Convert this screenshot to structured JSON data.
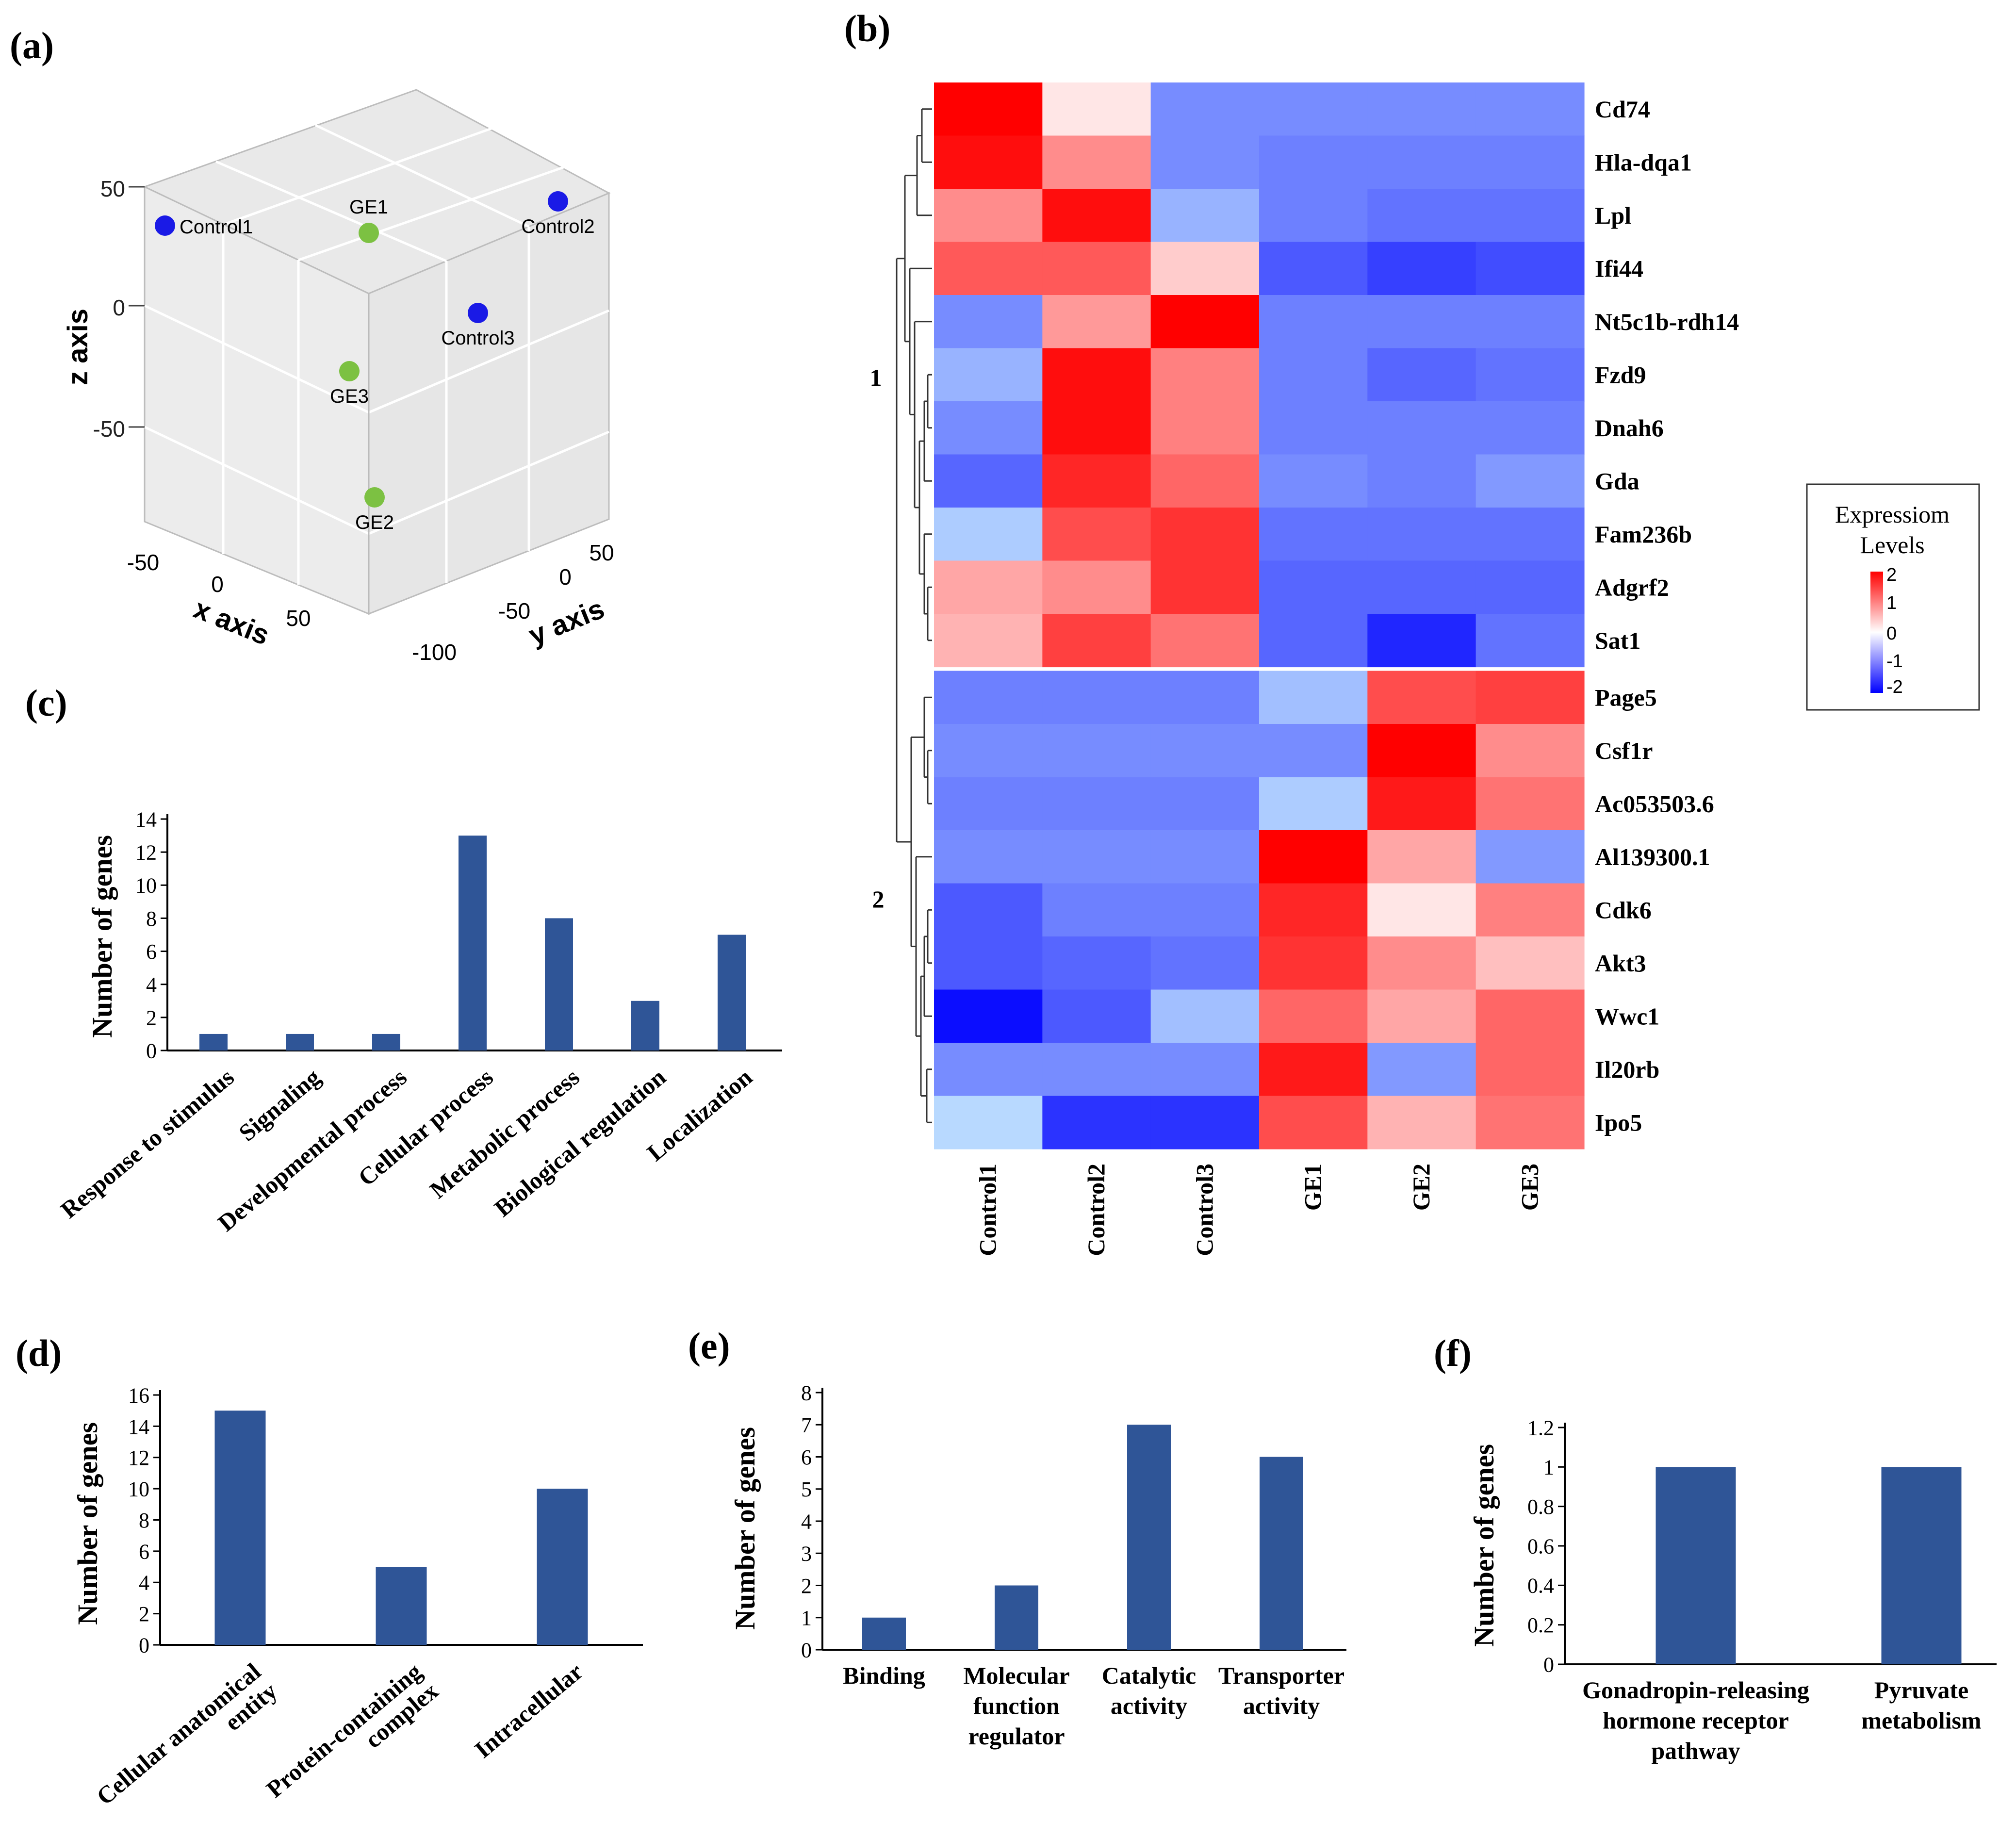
{
  "panels": {
    "a": "(a)",
    "b": "(b)",
    "c": "(c)",
    "d": "(d)",
    "e": "(e)",
    "f": "(f)"
  },
  "chart_data": [
    {
      "id": "a",
      "type": "scatter",
      "title": "",
      "xlabel": "x axis",
      "ylabel": "y axis",
      "zlabel": "z axis",
      "z_ticks": [
        "50",
        "0",
        "-50"
      ],
      "x_ticks": [
        "-50",
        "0",
        "50"
      ],
      "y_ticks": [
        "50",
        "0",
        "-50",
        "-100"
      ],
      "points": [
        {
          "label": "Control1",
          "group": "Control",
          "color": "#1a1ae6"
        },
        {
          "label": "Control2",
          "group": "Control",
          "color": "#1a1ae6"
        },
        {
          "label": "Control3",
          "group": "Control",
          "color": "#1a1ae6"
        },
        {
          "label": "GE1",
          "group": "GE",
          "color": "#7cc142"
        },
        {
          "label": "GE3",
          "group": "GE",
          "color": "#7cc142"
        },
        {
          "label": "GE2",
          "group": "GE",
          "color": "#7cc142"
        }
      ]
    },
    {
      "id": "b",
      "type": "heatmap",
      "columns": [
        "Control1",
        "Control2",
        "Control3",
        "GE1",
        "GE2",
        "GE3"
      ],
      "rows": [
        "Cd74",
        "Hla-dqa1",
        "Lpl",
        "Ifi44",
        "Nt5c1b-rdh14",
        "Fzd9",
        "Dnah6",
        "Gda",
        "Fam236b",
        "Adgrf2",
        "Sat1",
        "Page5",
        "Csf1r",
        "Ac053503.6",
        "Al139300.1",
        "Cdk6",
        "Akt3",
        "Wwc1",
        "Il20rb",
        "Ipo5"
      ],
      "values": [
        [
          2.0,
          0.2,
          -0.9,
          -0.9,
          -0.9,
          -0.9
        ],
        [
          1.9,
          0.9,
          -0.9,
          -1.0,
          -1.0,
          -1.0
        ],
        [
          0.9,
          1.9,
          -0.6,
          -1.0,
          -1.1,
          -1.1
        ],
        [
          1.3,
          1.3,
          0.4,
          -1.3,
          -1.5,
          -1.4
        ],
        [
          -0.9,
          0.8,
          2.0,
          -1.0,
          -1.0,
          -1.0
        ],
        [
          -0.6,
          1.9,
          1.0,
          -1.0,
          -1.2,
          -1.1
        ],
        [
          -0.9,
          1.9,
          1.0,
          -1.0,
          -1.0,
          -1.0
        ],
        [
          -1.2,
          1.7,
          1.2,
          -0.9,
          -1.0,
          -0.8
        ],
        [
          -0.4,
          1.4,
          1.6,
          -1.1,
          -1.1,
          -1.1
        ],
        [
          0.7,
          0.9,
          1.6,
          -1.2,
          -1.2,
          -1.2
        ],
        [
          0.6,
          1.5,
          1.1,
          -1.2,
          -1.7,
          -1.1
        ],
        [
          -1.0,
          -1.0,
          -1.0,
          -0.5,
          1.4,
          1.5
        ],
        [
          -0.9,
          -0.9,
          -0.9,
          -0.9,
          2.0,
          0.9
        ],
        [
          -1.0,
          -1.0,
          -1.0,
          -0.4,
          1.8,
          1.1
        ],
        [
          -0.9,
          -0.9,
          -0.9,
          2.0,
          0.7,
          -0.8
        ],
        [
          -1.3,
          -1.0,
          -1.0,
          1.7,
          0.2,
          1.0
        ],
        [
          -1.3,
          -1.2,
          -1.1,
          1.6,
          0.9,
          0.5
        ],
        [
          -1.9,
          -1.3,
          -0.5,
          1.2,
          0.7,
          1.2
        ],
        [
          -0.9,
          -0.9,
          -0.9,
          1.8,
          -0.8,
          1.2
        ],
        [
          -0.3,
          -1.6,
          -1.6,
          1.4,
          0.6,
          1.1
        ]
      ],
      "clusters": [
        "1",
        "2"
      ],
      "split_after_row": 11,
      "legend": {
        "title_line1": "Expressiom",
        "title_line2": "Levels",
        "ticks": [
          "2",
          "1",
          "0",
          "-1",
          "-2"
        ],
        "low_color": "#0000ff",
        "mid_color": "#ffffff",
        "high_color": "#ff0000"
      },
      "vmin": -2,
      "vmax": 2
    },
    {
      "id": "c",
      "type": "bar",
      "categories": [
        "Response to stimulus",
        "Signaling",
        "Developmental process",
        "Cellular process",
        "Metabolic process",
        "Biological regulation",
        "Localization"
      ],
      "values": [
        1,
        1,
        1,
        13,
        8,
        3,
        7
      ],
      "ylabel": "Number of genes",
      "ylim": [
        0,
        14
      ],
      "yticks": [
        "0",
        "2",
        "4",
        "6",
        "8",
        "10",
        "12",
        "14"
      ],
      "bar_color": "#2f5597"
    },
    {
      "id": "d",
      "type": "bar",
      "categories": [
        "Cellular anatomical entity",
        "Protein-containing complex",
        "Intracellular"
      ],
      "category_lines": [
        [
          "Cellular anatomical",
          "entity"
        ],
        [
          "Protein-containing",
          "complex"
        ],
        [
          "Intracellular"
        ]
      ],
      "values": [
        15,
        5,
        10
      ],
      "ylabel": "Number of genes",
      "ylim": [
        0,
        16
      ],
      "yticks": [
        "0",
        "2",
        "4",
        "6",
        "8",
        "10",
        "12",
        "14",
        "16"
      ],
      "bar_color": "#2f5597"
    },
    {
      "id": "e",
      "type": "bar",
      "categories": [
        "Binding",
        "Molecular function regulator",
        "Catalytic activity",
        "Transporter activity"
      ],
      "category_lines": [
        [
          "Binding"
        ],
        [
          "Molecular",
          "function",
          "regulator"
        ],
        [
          "Catalytic",
          "activity"
        ],
        [
          "Transporter",
          "activity"
        ]
      ],
      "values": [
        1,
        2,
        7,
        6
      ],
      "ylabel": "Number of genes",
      "ylim": [
        0,
        8
      ],
      "yticks": [
        "0",
        "1",
        "2",
        "3",
        "4",
        "5",
        "6",
        "7",
        "8"
      ],
      "bar_color": "#2f5597"
    },
    {
      "id": "f",
      "type": "bar",
      "categories": [
        "Gonadropin-releasing hormone receptor pathway",
        "Pyruvate metabolism"
      ],
      "category_lines": [
        [
          "Gonadropin-releasing",
          "hormone receptor",
          "pathway"
        ],
        [
          "Pyruvate",
          "metabolism"
        ]
      ],
      "values": [
        1,
        1
      ],
      "ylabel": "Number of genes",
      "ylim": [
        0,
        1.2
      ],
      "yticks": [
        "0",
        "0.2",
        "0.4",
        "0.6",
        "0.8",
        "1",
        "1.2"
      ],
      "bar_color": "#2f5597"
    }
  ]
}
